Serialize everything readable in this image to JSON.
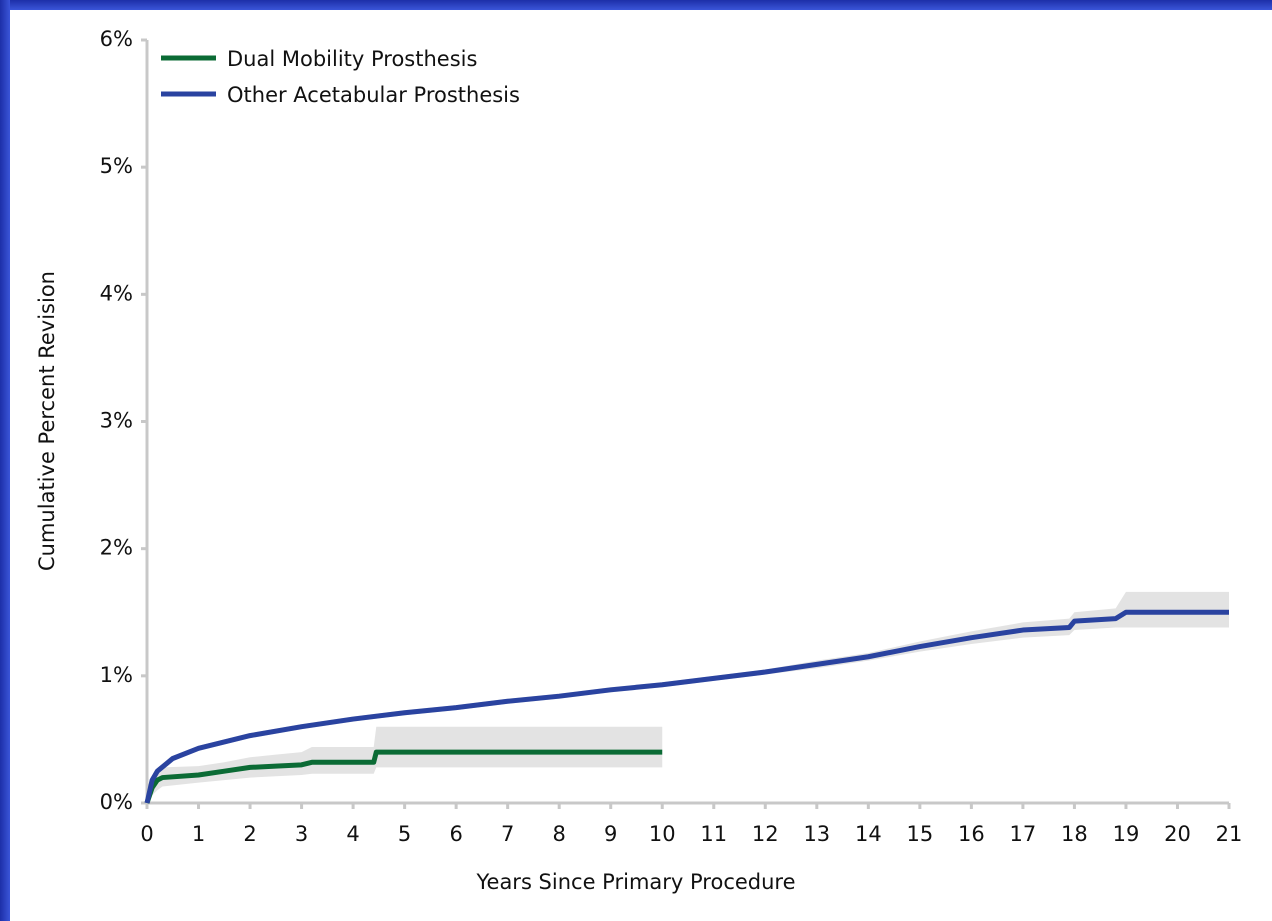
{
  "chart_data": {
    "type": "line",
    "xlabel": "Years Since Primary Procedure",
    "ylabel": "Cumulative Percent Revision",
    "xlim": [
      0,
      21
    ],
    "xticks": [
      0,
      1,
      2,
      3,
      4,
      5,
      6,
      7,
      8,
      9,
      10,
      11,
      12,
      13,
      14,
      15,
      16,
      17,
      18,
      19,
      20,
      21
    ],
    "ylim": [
      0,
      6
    ],
    "yticks": [
      {
        "value": 0,
        "label": "0%"
      },
      {
        "value": 1,
        "label": "1%"
      },
      {
        "value": 2,
        "label": "2%"
      },
      {
        "value": 3,
        "label": "3%"
      },
      {
        "value": 4,
        "label": "4%"
      },
      {
        "value": 5,
        "label": "5%"
      },
      {
        "value": 6,
        "label": "6%"
      }
    ],
    "legend": "upper left",
    "band_color": "#e3e3e3",
    "series": [
      {
        "name": "Dual Mobility Prosthesis",
        "color": "#0b6b35",
        "x": [
          0,
          0.1,
          0.2,
          0.3,
          1,
          1.5,
          2,
          2.5,
          3,
          3.2,
          4.4,
          4.45,
          10
        ],
        "values": [
          0,
          0.12,
          0.18,
          0.2,
          0.22,
          0.25,
          0.28,
          0.29,
          0.3,
          0.32,
          0.32,
          0.4,
          0.4
        ],
        "ci_lower": [
          0,
          0.06,
          0.1,
          0.13,
          0.16,
          0.18,
          0.2,
          0.21,
          0.22,
          0.23,
          0.23,
          0.28,
          0.28
        ],
        "ci_upper": [
          0,
          0.18,
          0.25,
          0.28,
          0.29,
          0.32,
          0.36,
          0.38,
          0.4,
          0.44,
          0.44,
          0.6,
          0.6
        ]
      },
      {
        "name": "Other Acetabular Prosthesis",
        "color": "#2a43a0",
        "x": [
          0,
          0.1,
          0.2,
          0.5,
          1,
          2,
          3,
          4,
          5,
          6,
          7,
          8,
          9,
          10,
          11,
          12,
          13,
          14,
          15,
          16,
          17,
          17.9,
          18,
          18.8,
          19,
          21
        ],
        "values": [
          0,
          0.18,
          0.25,
          0.35,
          0.43,
          0.53,
          0.6,
          0.66,
          0.71,
          0.75,
          0.8,
          0.84,
          0.89,
          0.93,
          0.98,
          1.03,
          1.09,
          1.15,
          1.23,
          1.3,
          1.36,
          1.38,
          1.43,
          1.45,
          1.5,
          1.5
        ],
        "ci_lower": [
          0,
          0.16,
          0.23,
          0.33,
          0.41,
          0.51,
          0.58,
          0.64,
          0.69,
          0.73,
          0.78,
          0.82,
          0.87,
          0.91,
          0.96,
          1.01,
          1.06,
          1.12,
          1.19,
          1.25,
          1.3,
          1.32,
          1.36,
          1.38,
          1.38,
          1.38
        ],
        "ci_upper": [
          0,
          0.2,
          0.27,
          0.37,
          0.45,
          0.55,
          0.62,
          0.68,
          0.73,
          0.77,
          0.82,
          0.86,
          0.91,
          0.95,
          1.0,
          1.05,
          1.12,
          1.18,
          1.27,
          1.35,
          1.42,
          1.45,
          1.5,
          1.53,
          1.66,
          1.66
        ]
      }
    ]
  }
}
